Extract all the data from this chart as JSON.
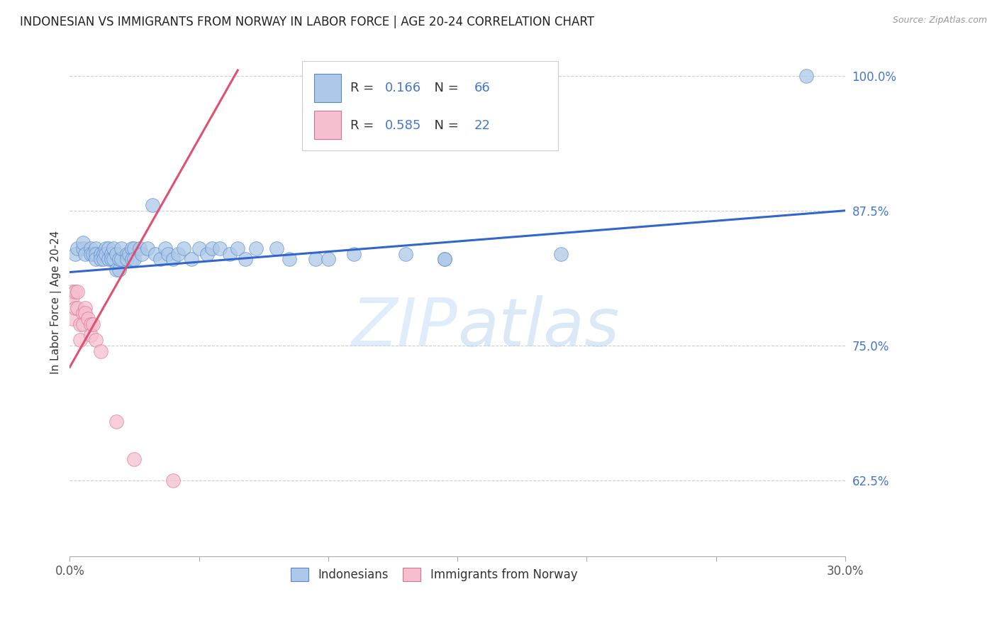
{
  "title": "INDONESIAN VS IMMIGRANTS FROM NORWAY IN LABOR FORCE | AGE 20-24 CORRELATION CHART",
  "source": "Source: ZipAtlas.com",
  "ylabel": "In Labor Force | Age 20-24",
  "xlim": [
    0.0,
    0.3
  ],
  "ylim": [
    0.555,
    1.025
  ],
  "xticks": [
    0.0,
    0.05,
    0.1,
    0.15,
    0.2,
    0.25,
    0.3
  ],
  "xticklabels": [
    "0.0%",
    "",
    "",
    "",
    "",
    "",
    "30.0%"
  ],
  "yticks": [
    0.625,
    0.75,
    0.875,
    1.0
  ],
  "yticklabels": [
    "62.5%",
    "75.0%",
    "87.5%",
    "100.0%"
  ],
  "r_blue": "0.166",
  "n_blue": "66",
  "r_pink": "0.585",
  "n_pink": "22",
  "blue_scatter_color": "#adc8e8",
  "blue_scatter_edge": "#5588cc",
  "pink_scatter_color": "#f5bfcf",
  "pink_scatter_edge": "#d87090",
  "blue_line_color": "#3366cc",
  "pink_line_color": "#e05070",
  "watermark": "ZIPatlas",
  "blue_scatter_x": [
    0.002,
    0.003,
    0.005,
    0.005,
    0.006,
    0.008,
    0.008,
    0.009,
    0.01,
    0.01,
    0.01,
    0.012,
    0.012,
    0.013,
    0.013,
    0.014,
    0.014,
    0.015,
    0.015,
    0.016,
    0.016,
    0.017,
    0.017,
    0.018,
    0.018,
    0.019,
    0.019,
    0.02,
    0.02,
    0.022,
    0.022,
    0.023,
    0.024,
    0.024,
    0.025,
    0.025,
    0.027,
    0.028,
    0.03,
    0.032,
    0.033,
    0.035,
    0.037,
    0.038,
    0.04,
    0.042,
    0.044,
    0.047,
    0.05,
    0.053,
    0.055,
    0.058,
    0.062,
    0.065,
    0.068,
    0.072,
    0.08,
    0.085,
    0.095,
    0.1,
    0.11,
    0.13,
    0.145,
    0.145,
    0.19,
    0.285
  ],
  "blue_scatter_y": [
    0.835,
    0.84,
    0.84,
    0.845,
    0.835,
    0.84,
    0.835,
    0.835,
    0.84,
    0.835,
    0.83,
    0.835,
    0.83,
    0.835,
    0.83,
    0.84,
    0.835,
    0.84,
    0.83,
    0.835,
    0.83,
    0.83,
    0.84,
    0.835,
    0.82,
    0.82,
    0.83,
    0.83,
    0.84,
    0.835,
    0.83,
    0.835,
    0.84,
    0.83,
    0.84,
    0.83,
    0.84,
    0.835,
    0.84,
    0.88,
    0.835,
    0.83,
    0.84,
    0.835,
    0.83,
    0.835,
    0.84,
    0.83,
    0.84,
    0.835,
    0.84,
    0.84,
    0.835,
    0.84,
    0.83,
    0.84,
    0.84,
    0.83,
    0.83,
    0.83,
    0.835,
    0.835,
    0.83,
    0.83,
    0.835,
    1.0
  ],
  "pink_scatter_x": [
    0.001,
    0.001,
    0.001,
    0.002,
    0.002,
    0.003,
    0.003,
    0.004,
    0.004,
    0.005,
    0.005,
    0.006,
    0.006,
    0.007,
    0.008,
    0.008,
    0.009,
    0.01,
    0.012,
    0.018,
    0.025,
    0.04
  ],
  "pink_scatter_y": [
    0.8,
    0.795,
    0.775,
    0.8,
    0.785,
    0.8,
    0.785,
    0.77,
    0.755,
    0.78,
    0.77,
    0.785,
    0.78,
    0.775,
    0.77,
    0.76,
    0.77,
    0.755,
    0.745,
    0.68,
    0.645,
    0.625
  ],
  "blue_line_x": [
    0.0,
    0.3
  ],
  "blue_line_y": [
    0.818,
    0.875
  ],
  "pink_line_x": [
    0.0,
    0.065
  ],
  "pink_line_y": [
    0.73,
    1.005
  ],
  "figsize": [
    14.06,
    8.92
  ],
  "dpi": 100
}
